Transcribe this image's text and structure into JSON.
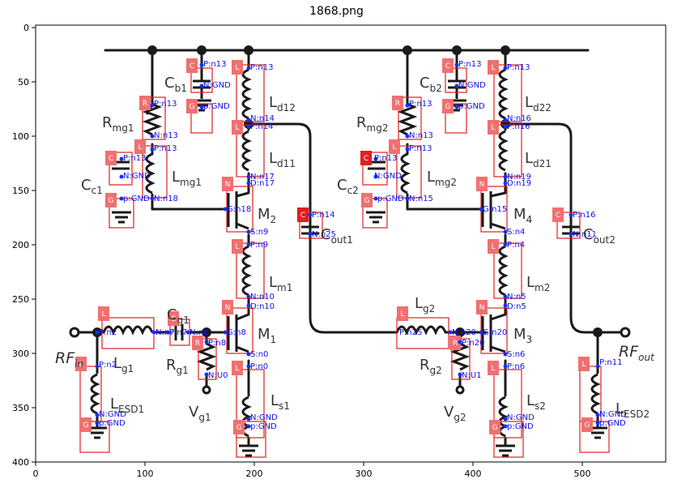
{
  "figure": {
    "title": "1868.png"
  },
  "axes": {
    "x_ticks": [
      "0",
      "100",
      "200",
      "300",
      "400",
      "500"
    ],
    "y_ticks": [
      "0",
      "50",
      "100",
      "150",
      "200",
      "250",
      "300",
      "350",
      "400"
    ]
  },
  "labels": [
    {
      "text": "Cb1",
      "main": "C",
      "sub": "b1"
    },
    {
      "text": "Ld12",
      "main": "L",
      "sub": "d12"
    },
    {
      "text": "Rmg1",
      "main": "R",
      "sub": "mg1"
    },
    {
      "text": "Ld11",
      "main": "L",
      "sub": "d11"
    },
    {
      "text": "Cc1",
      "main": "C",
      "sub": "c1"
    },
    {
      "text": "Lmg1",
      "main": "L",
      "sub": "mg1"
    },
    {
      "text": "M2",
      "main": "M",
      "sub": "2"
    },
    {
      "text": "Lm1",
      "main": "L",
      "sub": "m1"
    },
    {
      "text": "Cg1",
      "main": "C",
      "sub": "g1"
    },
    {
      "text": "M1",
      "main": "M",
      "sub": "1"
    },
    {
      "text": "RFin",
      "main": "RF",
      "sub": "in"
    },
    {
      "text": "Lg1",
      "main": "L",
      "sub": "g1"
    },
    {
      "text": "Rg1",
      "main": "R",
      "sub": "g1"
    },
    {
      "text": "LESD1",
      "main": "L",
      "sub": "ESD1"
    },
    {
      "text": "Vg1",
      "main": "V",
      "sub": "g1"
    },
    {
      "text": "Ls1",
      "main": "L",
      "sub": "s1"
    },
    {
      "text": "Cout1",
      "main": "C",
      "sub": "out1"
    },
    {
      "text": "Cb2",
      "main": "C",
      "sub": "b2"
    },
    {
      "text": "Ld22",
      "main": "L",
      "sub": "d22"
    },
    {
      "text": "Rmg2",
      "main": "R",
      "sub": "mg2"
    },
    {
      "text": "Ld21",
      "main": "L",
      "sub": "d21"
    },
    {
      "text": "Cc2",
      "main": "C",
      "sub": "c2"
    },
    {
      "text": "Lmg2",
      "main": "L",
      "sub": "mg2"
    },
    {
      "text": "M4",
      "main": "M",
      "sub": "4"
    },
    {
      "text": "Lm2",
      "main": "L",
      "sub": "m2"
    },
    {
      "text": "Lg2",
      "main": "L",
      "sub": "g2"
    },
    {
      "text": "M3",
      "main": "M",
      "sub": "3"
    },
    {
      "text": "Rg2",
      "main": "R",
      "sub": "g2"
    },
    {
      "text": "Vg2",
      "main": "V",
      "sub": "g2"
    },
    {
      "text": "Ls2",
      "main": "L",
      "sub": "s2"
    },
    {
      "text": "Cout2",
      "main": "C",
      "sub": "out2"
    },
    {
      "text": "RFout",
      "main": "RF",
      "sub": "out"
    },
    {
      "text": "LESD2",
      "main": "L",
      "sub": "ESD2"
    }
  ],
  "components": [
    {
      "type": "C",
      "pins": [
        "P:n13",
        "N:GND"
      ]
    },
    {
      "type": "G",
      "pins": [
        "p:GND"
      ]
    },
    {
      "type": "L",
      "pins": [
        "P:n13",
        "N:n14"
      ]
    },
    {
      "type": "R",
      "pins": [
        "P:n13",
        "N:n13"
      ]
    },
    {
      "type": "L",
      "pins": [
        "P:n14",
        "N:n17"
      ]
    },
    {
      "type": "C",
      "pins": [
        "P:n13",
        "N:GND"
      ]
    },
    {
      "type": "L",
      "pins": [
        "P:n13",
        "N:n18"
      ]
    },
    {
      "type": "G",
      "pins": [
        "p:GND"
      ]
    },
    {
      "type": "N",
      "pins": [
        "D:n17",
        "G:n18",
        "S:n9"
      ]
    },
    {
      "type": "C",
      "pins": [
        "P:n14",
        "N:n25"
      ]
    },
    {
      "type": "L",
      "pins": [
        "P:n9",
        "N:n10"
      ]
    },
    {
      "type": "N",
      "pins": [
        "D:n10",
        "G:n8",
        "S:n0"
      ]
    },
    {
      "type": "L",
      "pins": [
        "P:n2",
        "N:n7"
      ]
    },
    {
      "type": "C",
      "pins": [
        "P:n7",
        "N:n8"
      ]
    },
    {
      "type": "R",
      "pins": [
        "P:n8",
        "N:U0"
      ]
    },
    {
      "type": "L",
      "pins": [
        "P:n2",
        "N:GND"
      ]
    },
    {
      "type": "G",
      "pins": [
        "p:GND"
      ]
    },
    {
      "type": "L",
      "pins": [
        "P:n0",
        "N:GND"
      ]
    },
    {
      "type": "G",
      "pins": [
        "p:GND"
      ]
    },
    {
      "type": "C",
      "pins": [
        "P:n13",
        "N:GND"
      ]
    },
    {
      "type": "G",
      "pins": [
        "p:GND"
      ]
    },
    {
      "type": "L",
      "pins": [
        "P:n13",
        "N:n16"
      ]
    },
    {
      "type": "R",
      "pins": [
        "P:n13",
        "N:n13"
      ]
    },
    {
      "type": "L",
      "pins": [
        "P:n16",
        "N:n19"
      ]
    },
    {
      "type": "C",
      "pins": [
        "P:n13",
        "N:GND"
      ]
    },
    {
      "type": "L",
      "pins": [
        "P:n13",
        "N:n15"
      ]
    },
    {
      "type": "G",
      "pins": [
        "p:GND"
      ]
    },
    {
      "type": "N",
      "pins": [
        "D:n19",
        "G:n15",
        "S:n4"
      ]
    },
    {
      "type": "L",
      "pins": [
        "P:n4",
        "N:n5"
      ]
    },
    {
      "type": "N",
      "pins": [
        "D:n5",
        "G:n20",
        "S:n6"
      ]
    },
    {
      "type": "L",
      "pins": [
        "P:n25",
        "N:n20"
      ]
    },
    {
      "type": "R",
      "pins": [
        "P:n20",
        "N:U1"
      ]
    },
    {
      "type": "L",
      "pins": [
        "P:n6",
        "N:GND"
      ]
    },
    {
      "type": "G",
      "pins": [
        "p:GND"
      ]
    },
    {
      "type": "C",
      "pins": [
        "P:n16",
        "N:n11"
      ]
    },
    {
      "type": "L",
      "pins": [
        "P:n11",
        "N:GND"
      ]
    },
    {
      "type": "G",
      "pins": [
        "p:GND"
      ]
    }
  ]
}
